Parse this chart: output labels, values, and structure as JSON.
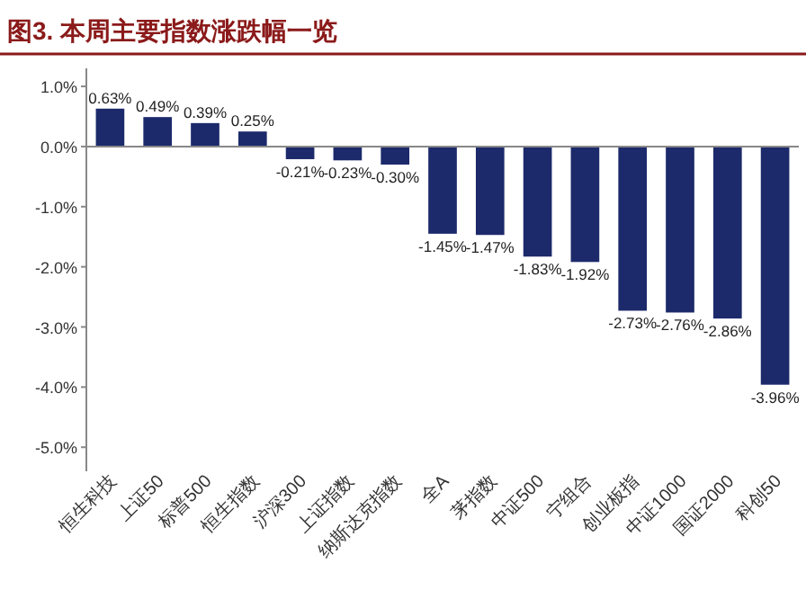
{
  "chart_data": {
    "type": "bar",
    "title": "图3. 本周主要指数涨跌幅一览",
    "categories": [
      "恒生科技",
      "上证50",
      "标普500",
      "恒生指数",
      "沪深300",
      "上证指数",
      "纳斯达克指数",
      "全A",
      "茅指数",
      "中证500",
      "宁组合",
      "创业板指",
      "中证1000",
      "国证2000",
      "科创50"
    ],
    "values": [
      0.63,
      0.49,
      0.39,
      0.25,
      -0.21,
      -0.23,
      -0.3,
      -1.45,
      -1.47,
      -1.83,
      -1.92,
      -2.73,
      -2.76,
      -2.86,
      -3.96
    ],
    "value_labels": [
      "0.63%",
      "0.49%",
      "0.39%",
      "0.25%",
      "-0.21%",
      "-0.23%",
      "-0.30%",
      "-1.45%",
      "-1.47%",
      "-1.83%",
      "-1.92%",
      "-2.73%",
      "-2.76%",
      "-2.86%",
      "-3.96%"
    ],
    "color": "#1c2a6b",
    "ylim": [
      -5.4,
      1.3
    ],
    "yticks": [
      {
        "value": 1,
        "label": "1.0%"
      },
      {
        "value": 0,
        "label": "0.0%"
      },
      {
        "value": -1,
        "label": "-1.0%"
      },
      {
        "value": -2,
        "label": "-2.0%"
      },
      {
        "value": -3,
        "label": "-3.0%"
      },
      {
        "value": -4,
        "label": "-4.0%"
      },
      {
        "value": -5,
        "label": "-5.0%"
      }
    ]
  }
}
